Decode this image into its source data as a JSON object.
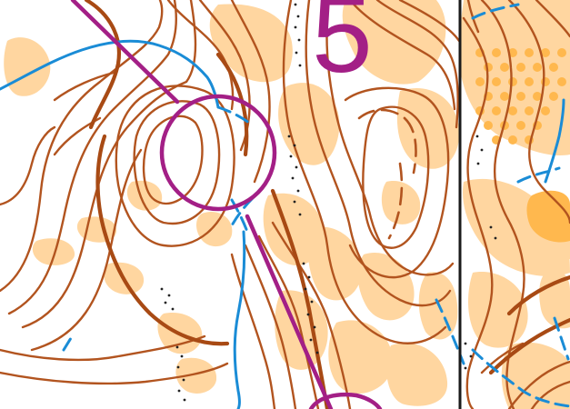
{
  "map": {
    "control_number": "5",
    "colors": {
      "contour": "#b2541f",
      "index_contour": "#a84a14",
      "rough_open": "#ffd6a0",
      "open_land": "#ffb84e",
      "water": "#1a8cd6",
      "course": "#a31f86",
      "magnetic_north_line": "#1a1a1a",
      "rock": "#222222"
    }
  }
}
